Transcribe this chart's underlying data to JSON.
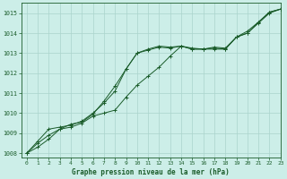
{
  "xlabel": "Graphe pression niveau de la mer (hPa)",
  "xlim": [
    -0.5,
    23
  ],
  "ylim": [
    1007.8,
    1015.5
  ],
  "yticks": [
    1008,
    1009,
    1010,
    1011,
    1012,
    1013,
    1014,
    1015
  ],
  "xticks": [
    0,
    1,
    2,
    3,
    4,
    5,
    6,
    7,
    8,
    9,
    10,
    11,
    12,
    13,
    14,
    15,
    16,
    17,
    18,
    19,
    20,
    21,
    22,
    23
  ],
  "bg_color": "#cceee8",
  "grid_color": "#aad4cc",
  "line_color": "#1a5c2a",
  "line1": [
    1008.0,
    1008.6,
    1009.2,
    1009.3,
    1009.4,
    1009.6,
    1010.0,
    1010.5,
    1011.1,
    1012.2,
    1013.0,
    1013.2,
    1013.35,
    1013.3,
    1013.35,
    1013.25,
    1013.2,
    1013.3,
    1013.25,
    1013.8,
    1014.1,
    1014.55,
    1015.05,
    1015.2
  ],
  "line2": [
    1008.0,
    1008.5,
    1008.9,
    1009.2,
    1009.45,
    1009.55,
    1009.95,
    1010.6,
    1011.35,
    1012.2,
    1013.0,
    1013.15,
    1013.3,
    1013.25,
    1013.35,
    1013.2,
    1013.2,
    1013.25,
    1013.2,
    1013.8,
    1014.0,
    1014.55,
    1015.05,
    1015.2
  ],
  "line3": [
    1008.0,
    1008.3,
    1008.7,
    1009.2,
    1009.3,
    1009.5,
    1009.85,
    1010.0,
    1010.15,
    1010.8,
    1011.4,
    1011.85,
    1012.3,
    1012.85,
    1013.35,
    1013.2,
    1013.2,
    1013.2,
    1013.2,
    1013.8,
    1014.0,
    1014.5,
    1015.0,
    1015.2
  ]
}
